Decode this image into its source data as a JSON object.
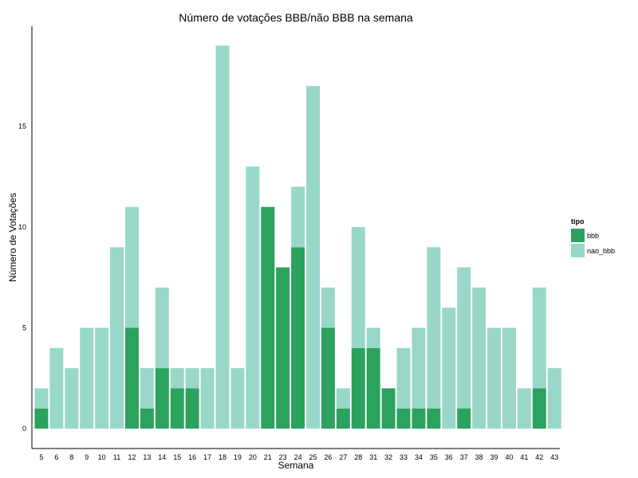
{
  "chart_data": {
    "type": "bar",
    "stacked": true,
    "title": "Número de votações BBB/não BBB na semana",
    "xlabel": "Semana",
    "ylabel": "Número de Votações",
    "categories": [
      "5",
      "6",
      "8",
      "9",
      "10",
      "11",
      "12",
      "13",
      "14",
      "15",
      "16",
      "17",
      "18",
      "19",
      "20",
      "21",
      "23",
      "24",
      "25",
      "26",
      "27",
      "28",
      "31",
      "32",
      "33",
      "34",
      "35",
      "36",
      "37",
      "38",
      "39",
      "40",
      "41",
      "42",
      "43"
    ],
    "series": [
      {
        "name": "bbb",
        "color": "#2ca25f",
        "values": [
          1,
          0,
          0,
          0,
          0,
          0,
          5,
          1,
          3,
          2,
          2,
          0,
          0,
          0,
          0,
          11,
          8,
          9,
          0,
          5,
          1,
          4,
          4,
          2,
          1,
          1,
          1,
          0,
          1,
          0,
          0,
          0,
          0,
          2,
          0
        ]
      },
      {
        "name": "nao_bbb",
        "color": "#99d8c9",
        "values": [
          1,
          4,
          3,
          5,
          5,
          9,
          6,
          2,
          4,
          1,
          1,
          3,
          19,
          3,
          13,
          0,
          0,
          3,
          17,
          2,
          1,
          6,
          1,
          0,
          3,
          4,
          8,
          6,
          7,
          7,
          5,
          5,
          2,
          5,
          3
        ]
      }
    ],
    "y_ticks": [
      "0",
      "5",
      "10",
      "15"
    ],
    "ylim": [
      -1,
      20
    ],
    "legend": {
      "title": "tipo",
      "position": "right"
    },
    "grid": false
  }
}
